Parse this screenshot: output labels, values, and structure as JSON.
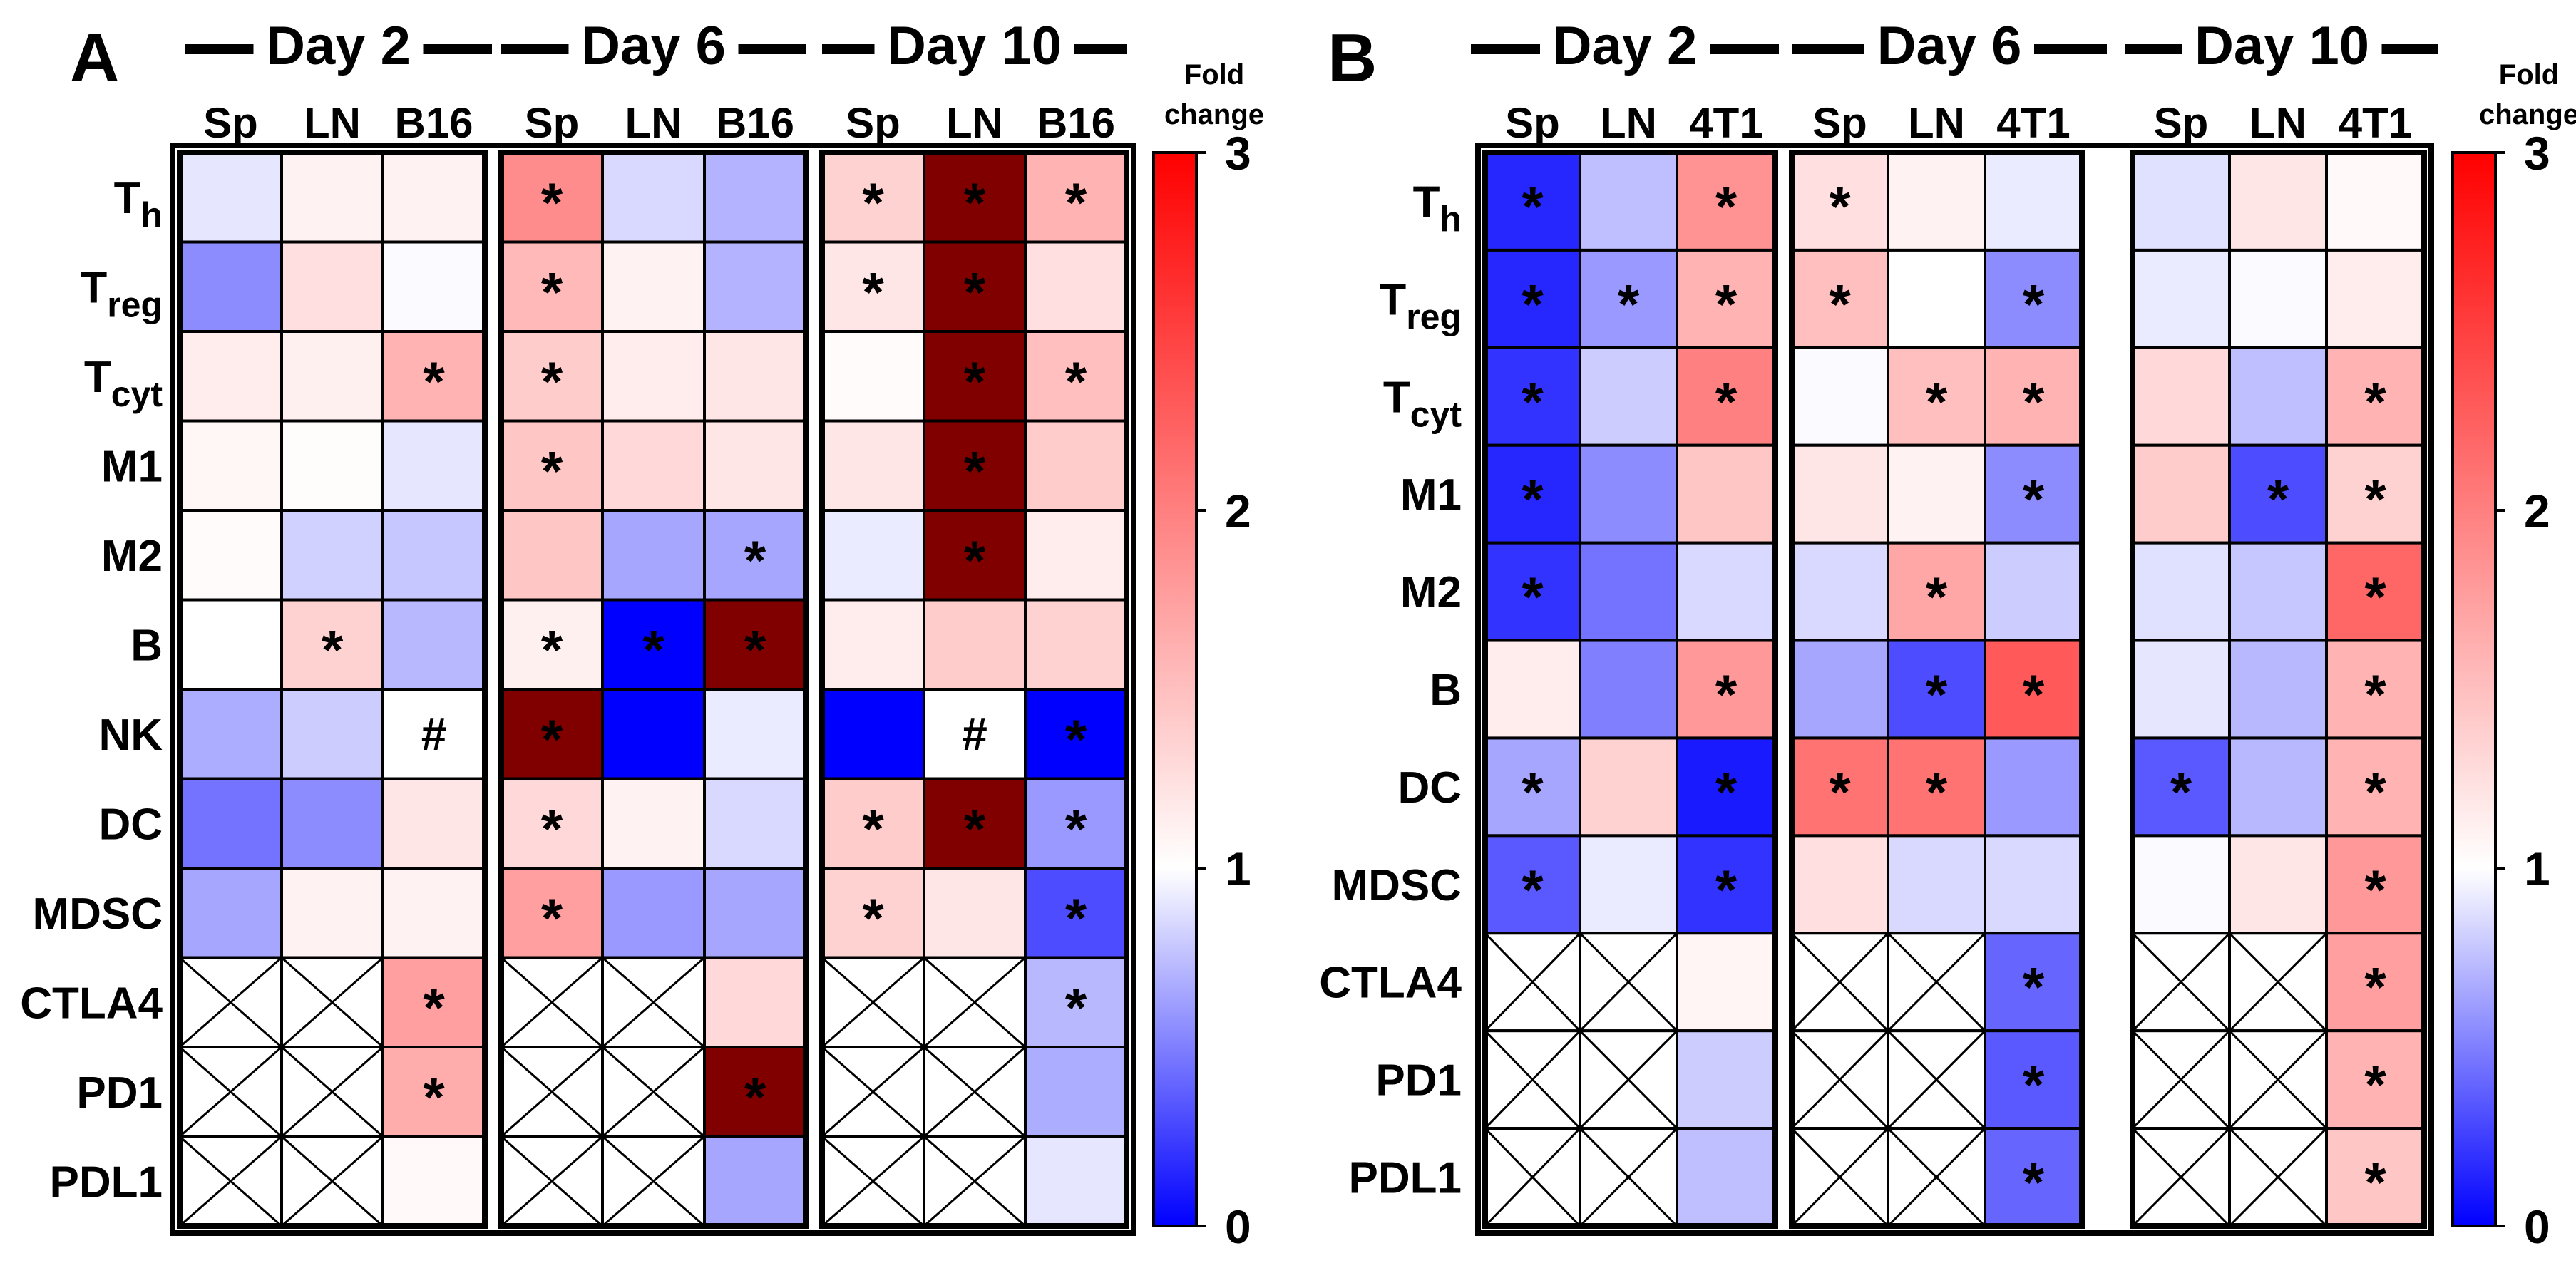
{
  "chart_data": [
    {
      "type": "heatmap",
      "panel": "A",
      "groups": [
        {
          "label": "Day 2",
          "columns": [
            "Sp",
            "LN",
            "B16"
          ]
        },
        {
          "label": "Day 6",
          "columns": [
            "Sp",
            "LN",
            "B16"
          ]
        },
        {
          "label": "Day 10",
          "columns": [
            "Sp",
            "LN",
            "B16"
          ]
        }
      ],
      "rows": [
        {
          "main": "T",
          "sub": "h"
        },
        {
          "main": "T",
          "sub": "reg"
        },
        {
          "main": "T",
          "sub": "cyt"
        },
        {
          "main": "M1",
          "sub": ""
        },
        {
          "main": "M2",
          "sub": ""
        },
        {
          "main": "B",
          "sub": ""
        },
        {
          "main": "NK",
          "sub": ""
        },
        {
          "main": "DC",
          "sub": ""
        },
        {
          "main": "MDSC",
          "sub": ""
        },
        {
          "main": "CTLA4",
          "sub": ""
        },
        {
          "main": "PD1",
          "sub": ""
        },
        {
          "main": "PDL1",
          "sub": ""
        }
      ],
      "values": [
        [
          0.9,
          1.1,
          1.1,
          1.9,
          0.85,
          0.7,
          1.35,
          3.2,
          1.6
        ],
        [
          0.55,
          1.25,
          0.98,
          1.55,
          1.1,
          0.7,
          1.2,
          3.2,
          1.25
        ],
        [
          1.15,
          1.12,
          1.6,
          1.4,
          1.15,
          1.2,
          1.03,
          3.2,
          1.5
        ],
        [
          1.07,
          1.02,
          0.9,
          1.45,
          1.3,
          1.2,
          1.2,
          3.2,
          1.4
        ],
        [
          1.03,
          0.82,
          0.78,
          1.45,
          0.65,
          0.65,
          0.92,
          3.2,
          1.15
        ],
        [
          1.0,
          1.35,
          0.72,
          1.12,
          0.0,
          3.2,
          1.15,
          1.4,
          1.35
        ],
        [
          0.68,
          0.8,
          null,
          3.2,
          0.0,
          0.92,
          0.0,
          null,
          0.0
        ],
        [
          0.45,
          0.55,
          1.2,
          1.3,
          1.1,
          0.85,
          1.4,
          3.2,
          0.6
        ],
        [
          0.65,
          1.1,
          1.1,
          1.75,
          0.6,
          0.65,
          1.35,
          1.2,
          0.3
        ],
        [
          null,
          null,
          1.75,
          null,
          null,
          1.3,
          null,
          null,
          0.72
        ],
        [
          null,
          null,
          1.65,
          null,
          null,
          3.2,
          null,
          null,
          0.68
        ],
        [
          null,
          null,
          1.05,
          null,
          null,
          0.65,
          null,
          null,
          0.9
        ]
      ],
      "marks": [
        [
          "",
          "",
          "",
          "*",
          "",
          "",
          "*",
          "*",
          "*"
        ],
        [
          "",
          "",
          "",
          "*",
          "",
          "",
          "*",
          "*",
          ""
        ],
        [
          "",
          "",
          "*",
          "*",
          "",
          "",
          "",
          "*",
          "*"
        ],
        [
          "",
          "",
          "",
          "*",
          "",
          "",
          "",
          "*",
          ""
        ],
        [
          "",
          "",
          "",
          "",
          "",
          "*",
          "",
          "*",
          ""
        ],
        [
          "",
          "*",
          "",
          "*",
          "*",
          "*",
          "",
          "",
          ""
        ],
        [
          "",
          "",
          "#",
          "*",
          "",
          "",
          "",
          "#",
          "*"
        ],
        [
          "",
          "",
          "",
          "*",
          "",
          "",
          "*",
          "*",
          "*"
        ],
        [
          "",
          "",
          "",
          "*",
          "",
          "",
          "*",
          "",
          "*"
        ],
        [
          "",
          "",
          "*",
          "",
          "",
          "",
          "",
          "",
          "*"
        ],
        [
          "",
          "",
          "*",
          "",
          "",
          "*",
          "",
          "",
          ""
        ],
        [
          "",
          "",
          "",
          "",
          "",
          "",
          "",
          "",
          ""
        ]
      ],
      "colorbar": {
        "title_lines": [
          "Fold",
          "change"
        ],
        "ticks": [
          "0",
          "1",
          "2",
          "3"
        ],
        "range": [
          0,
          3
        ],
        "low_color": "#0000ff",
        "mid_color": "#ffffff",
        "high_color": "#ff0000",
        "over_color": "#800000"
      }
    },
    {
      "type": "heatmap",
      "panel": "B",
      "groups": [
        {
          "label": "Day 2",
          "columns": [
            "Sp",
            "LN",
            "4T1"
          ]
        },
        {
          "label": "Day 6",
          "columns": [
            "Sp",
            "LN",
            "4T1"
          ]
        },
        {
          "label": "Day 10",
          "columns": [
            "Sp",
            "LN",
            "4T1"
          ]
        }
      ],
      "rows": [
        {
          "main": "T",
          "sub": "h"
        },
        {
          "main": "T",
          "sub": "reg"
        },
        {
          "main": "T",
          "sub": "cyt"
        },
        {
          "main": "M1",
          "sub": ""
        },
        {
          "main": "M2",
          "sub": ""
        },
        {
          "main": "B",
          "sub": ""
        },
        {
          "main": "DC",
          "sub": ""
        },
        {
          "main": "MDSC",
          "sub": ""
        },
        {
          "main": "CTLA4",
          "sub": ""
        },
        {
          "main": "PD1",
          "sub": ""
        },
        {
          "main": "PDL1",
          "sub": ""
        }
      ],
      "values": [
        [
          0.15,
          0.75,
          1.85,
          1.25,
          1.1,
          0.92,
          0.88,
          1.2,
          1.05
        ],
        [
          0.15,
          0.6,
          1.6,
          1.5,
          1.0,
          0.55,
          0.92,
          0.98,
          1.15
        ],
        [
          0.2,
          0.8,
          2.0,
          0.98,
          1.5,
          1.6,
          1.3,
          0.75,
          1.6
        ],
        [
          0.15,
          0.55,
          1.45,
          1.2,
          1.1,
          0.55,
          1.4,
          0.3,
          1.35
        ],
        [
          0.2,
          0.45,
          0.85,
          0.85,
          1.7,
          0.8,
          0.88,
          0.78,
          2.2
        ],
        [
          1.15,
          0.5,
          1.8,
          0.65,
          0.3,
          2.3,
          0.9,
          0.72,
          1.6
        ],
        [
          0.65,
          1.35,
          0.1,
          2.1,
          2.1,
          0.6,
          0.35,
          0.72,
          1.6
        ],
        [
          0.35,
          0.92,
          0.2,
          1.25,
          0.85,
          0.85,
          0.98,
          1.2,
          1.8
        ],
        [
          null,
          null,
          1.08,
          null,
          null,
          0.4,
          null,
          null,
          1.75
        ],
        [
          null,
          null,
          0.8,
          null,
          null,
          0.35,
          null,
          null,
          1.6
        ],
        [
          null,
          null,
          0.75,
          null,
          null,
          0.4,
          null,
          null,
          1.45
        ]
      ],
      "marks": [
        [
          "*",
          "",
          "*",
          "*",
          "",
          "",
          "",
          "",
          ""
        ],
        [
          "*",
          "*",
          "*",
          "*",
          "",
          "*",
          "",
          "",
          ""
        ],
        [
          "*",
          "",
          "*",
          "",
          "*",
          "*",
          "",
          "",
          "*"
        ],
        [
          "*",
          "",
          "",
          "",
          "",
          "*",
          "",
          "*",
          "*"
        ],
        [
          "*",
          "",
          "",
          "",
          "*",
          "",
          "",
          "",
          "*"
        ],
        [
          "",
          "",
          "*",
          "",
          "*",
          "*",
          "",
          "",
          "*"
        ],
        [
          "*",
          "",
          "*",
          "*",
          "*",
          "",
          "*",
          "",
          "*"
        ],
        [
          "*",
          "",
          "*",
          "",
          "",
          "",
          "",
          "",
          "*"
        ],
        [
          "",
          "",
          "",
          "",
          "",
          "*",
          "",
          "",
          "*"
        ],
        [
          "",
          "",
          "",
          "",
          "",
          "*",
          "",
          "",
          "*"
        ],
        [
          "",
          "",
          "",
          "",
          "",
          "*",
          "",
          "",
          "*"
        ]
      ],
      "colorbar": {
        "title_lines": [
          "Fold",
          "change"
        ],
        "ticks": [
          "0",
          "1",
          "2",
          "3"
        ],
        "range": [
          0,
          3
        ],
        "low_color": "#0000ff",
        "mid_color": "#ffffff",
        "high_color": "#ff0000",
        "over_color": "#800000"
      }
    }
  ]
}
